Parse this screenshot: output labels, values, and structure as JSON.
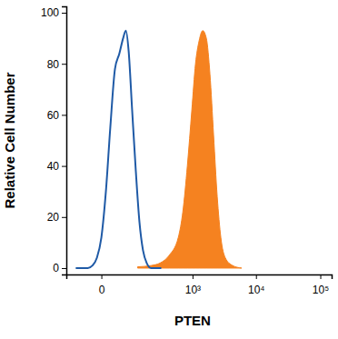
{
  "chart_data": {
    "type": "line",
    "x_label": "PTEN",
    "y_label": "Relative Cell Number",
    "log": "x",
    "xlim": [
      -100,
      150000
    ],
    "xticks": [
      0,
      {
        "value": 1000,
        "label": "10³"
      },
      {
        "value": 10000,
        "label": "10⁴"
      },
      {
        "value": 100000,
        "label": "10⁵"
      }
    ],
    "ylim": [
      -2.5,
      102.5
    ],
    "yticks": [
      0,
      20,
      40,
      60,
      80,
      100
    ],
    "series": [
      {
        "type": "line",
        "color": "#1f5aa6",
        "x": [
          -60,
          -25,
          -15,
          -7,
          0,
          7,
          15,
          25,
          36,
          47,
          56,
          66,
          80,
          97,
          116,
          137,
          162,
          197,
          300
        ],
        "values": [
          0,
          0,
          1,
          4,
          12,
          30,
          55,
          78,
          84,
          90,
          93,
          85,
          62,
          38,
          18,
          7,
          2,
          0,
          0
        ]
      },
      {
        "type": "area",
        "color": "#f58220",
        "x": [
          106,
          197,
          287,
          412,
          585,
          695,
          824,
          975,
          1116,
          1275,
          1456,
          1664,
          1897,
          2167,
          2473,
          2820,
          3320,
          4316,
          5970
        ],
        "values": [
          0.5,
          1,
          2,
          5,
          12,
          22,
          40,
          62,
          80,
          89,
          93,
          90,
          76,
          52,
          28,
          12,
          4,
          1,
          0
        ]
      }
    ]
  }
}
